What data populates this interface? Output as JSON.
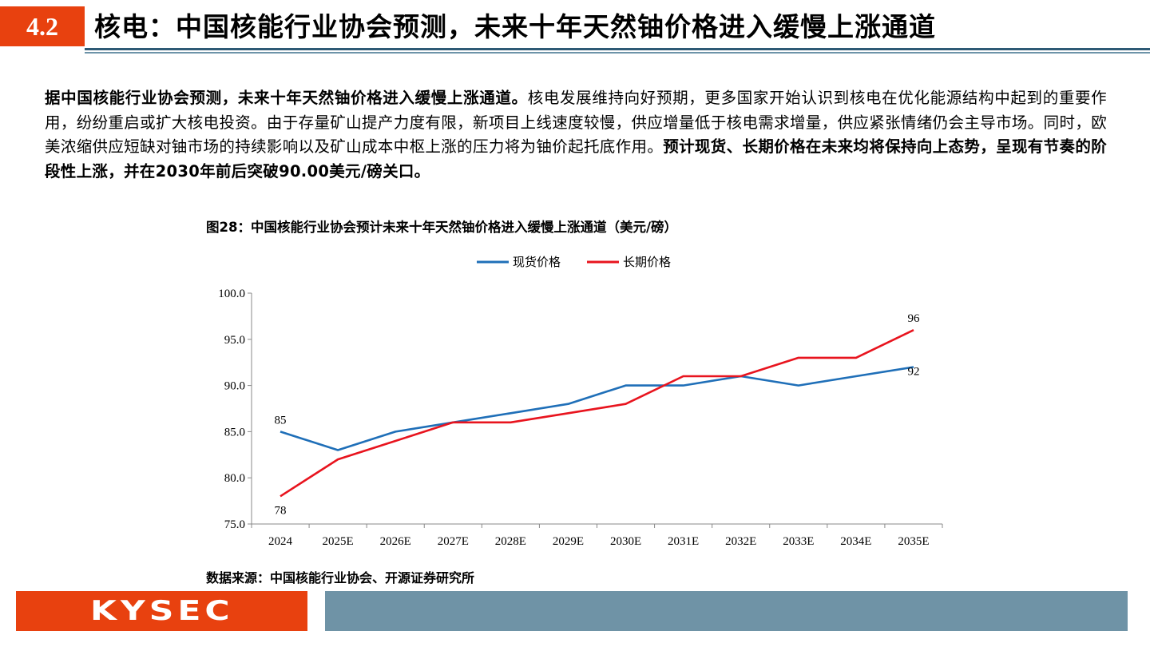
{
  "header": {
    "section_number": "4.2",
    "title": "核电：中国核能行业协会预测，未来十年天然铀价格进入缓慢上涨通道"
  },
  "paragraph": {
    "bold_lead": "据中国核能行业协会预测，未来十年天然铀价格进入缓慢上涨通道。",
    "body": "核电发展维持向好预期，更多国家开始认识到核电在优化能源结构中起到的重要作用，纷纷重启或扩大核电投资。由于存量矿山提产力度有限，新项目上线速度较慢，供应增量低于核电需求增量，供应紧张情绪仍会主导市场。同时，欧美浓缩供应短缺对铀市场的持续影响以及矿山成本中枢上涨的压力将为铀价起托底作用。",
    "bold_tail": "预计现货、长期价格在未来均将保持向上态势，呈现有节奏的阶段性上涨，并在2030年前后突破90.00美元/磅关口。"
  },
  "figure": {
    "label": "图28：",
    "caption": "中国核能行业协会预计未来十年天然铀价格进入缓慢上涨通道（美元/磅）"
  },
  "source": "数据来源：中国核能行业协会、开源证券研究所",
  "footer": {
    "logo_text": "KYSEC"
  },
  "colors": {
    "accent": "#e8410f",
    "header_line": "#2e5a75",
    "footer_bar": "#6f93a6",
    "spot": "#1f6fb8",
    "long_term": "#e8141e"
  },
  "chart_data": {
    "type": "line",
    "categories": [
      "2024",
      "2025E",
      "2026E",
      "2027E",
      "2028E",
      "2029E",
      "2030E",
      "2031E",
      "2032E",
      "2033E",
      "2034E",
      "2035E"
    ],
    "series": [
      {
        "name": "现货价格",
        "color": "#1f6fb8",
        "values": [
          85,
          83,
          85,
          86,
          87,
          88,
          90,
          90,
          91,
          90,
          91,
          92
        ]
      },
      {
        "name": "长期价格",
        "color": "#e8141e",
        "values": [
          78,
          82,
          84,
          86,
          86,
          87,
          88,
          91,
          91,
          93,
          93,
          96
        ]
      }
    ],
    "data_labels": [
      {
        "series": 0,
        "index": 0,
        "text": "85"
      },
      {
        "series": 1,
        "index": 0,
        "text": "78"
      },
      {
        "series": 0,
        "index": 11,
        "text": "92"
      },
      {
        "series": 1,
        "index": 11,
        "text": "96"
      }
    ],
    "yticks": [
      "75.0",
      "80.0",
      "85.0",
      "90.0",
      "95.0",
      "100.0"
    ],
    "ylim": [
      75,
      100
    ],
    "legend_position": "top-center",
    "grid": false
  }
}
